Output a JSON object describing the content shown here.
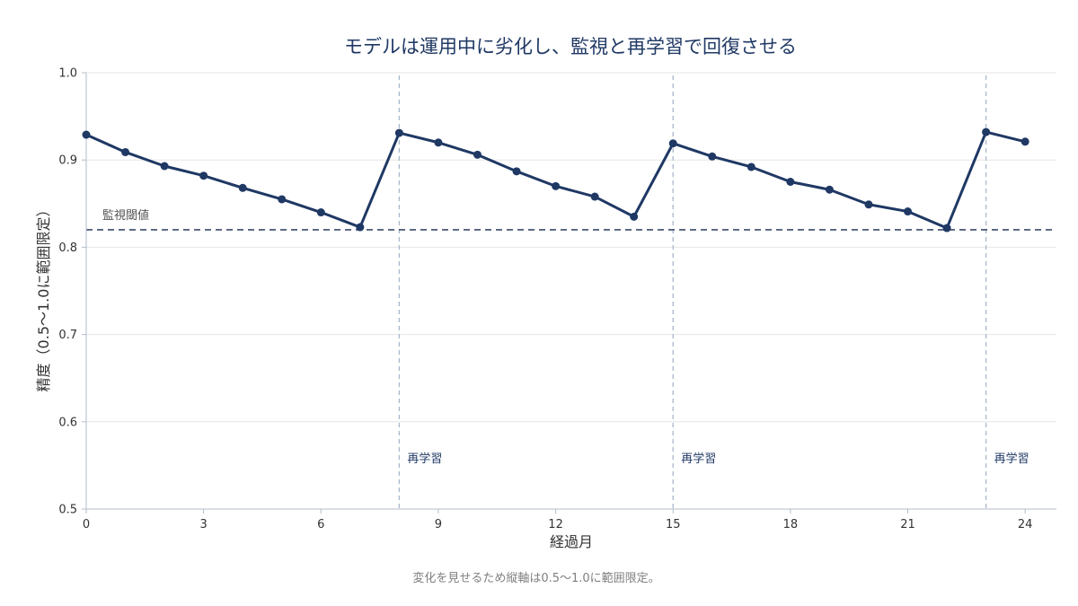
{
  "chart_data": {
    "type": "line",
    "title": "モデルは運用中に劣化し、監視と再学習で回復させる",
    "xlabel": "経過月",
    "ylabel": "精度（0.5〜1.0に範囲限定）",
    "note": "変化を見せるため縦軸は0.5〜1.0に範囲限定。",
    "xlim": [
      0,
      24.8
    ],
    "ylim": [
      0.5,
      1.0
    ],
    "xticks": [
      0,
      3,
      6,
      9,
      12,
      15,
      18,
      21,
      24
    ],
    "yticks": [
      0.5,
      0.6,
      0.7,
      0.8,
      0.9,
      1.0
    ],
    "ytick_labels": [
      "0.5",
      "0.6",
      "0.7",
      "0.8",
      "0.9",
      "1.0"
    ],
    "grid": "horizontal",
    "series": [
      {
        "x": [
          0,
          1,
          2,
          3,
          4,
          5,
          6,
          7,
          8,
          9,
          10,
          11,
          12,
          13,
          14,
          15,
          16,
          17,
          18,
          19,
          20,
          21,
          22,
          23,
          24
        ],
        "y": [
          0.929,
          0.909,
          0.893,
          0.882,
          0.868,
          0.855,
          0.84,
          0.823,
          0.931,
          0.92,
          0.906,
          0.887,
          0.87,
          0.858,
          0.835,
          0.919,
          0.904,
          0.892,
          0.875,
          0.866,
          0.849,
          0.841,
          0.822,
          0.932,
          0.921
        ],
        "color": "#1f3864"
      }
    ],
    "threshold": {
      "value": 0.82,
      "label": "監視閾値",
      "color": "#3b4a6b"
    },
    "retrain_lines": [
      {
        "x": 8,
        "label": "再学習"
      },
      {
        "x": 15,
        "label": "再学習"
      },
      {
        "x": 23,
        "label": "再学習"
      }
    ],
    "colors": {
      "line": "#1f3864",
      "retrain": "#a9b8cc",
      "grid": "#e6e6e6",
      "axis": "#b0bccb"
    }
  }
}
